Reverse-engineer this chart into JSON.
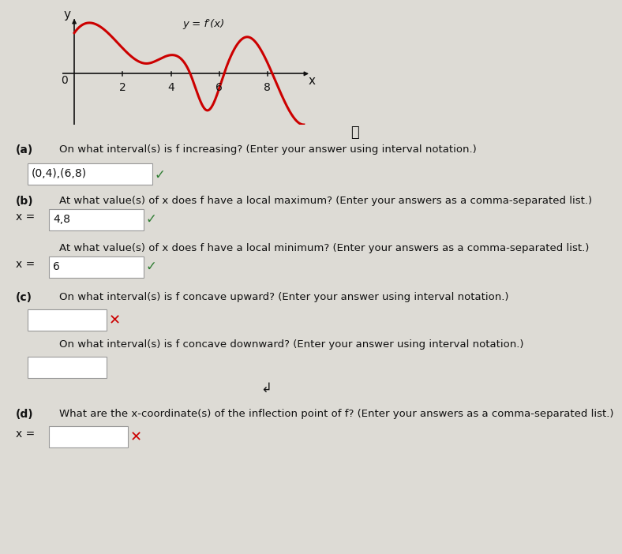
{
  "bg_color": "#dddbd5",
  "graph_bg": "#dddbd5",
  "curve_color": "#cc0000",
  "curve_linewidth": 2.2,
  "axis_color": "#111111",
  "x_ticks": [
    2,
    4,
    6,
    8
  ],
  "curve_label": "y = f′(x)",
  "title_circle": "ⓘ",
  "part_a_label": "(a)",
  "part_a_question": "On what interval(s) is f increasing? (Enter your answer using interval notation.)",
  "part_a_answer": "(0,4),(6,8)",
  "part_b_label": "(b)",
  "part_b_q1": "At what value(s) of x does f have a local maximum? (Enter your answers as a comma-separated list.)",
  "part_b_a1": "4,8",
  "part_b_q2": "At what value(s) of x does f have a local minimum? (Enter your answers as a comma-separated list.)",
  "part_b_a2": "6",
  "part_c_label": "(c)",
  "part_c_q1": "On what interval(s) is f concave upward? (Enter your answer using interval notation.)",
  "part_c_a1": "",
  "part_c_q2": "On what interval(s) is f concave downward? (Enter your answer using interval notation.)",
  "part_c_a2": "",
  "part_d_label": "(d)",
  "part_d_question": "What are the x-coordinate(s) of the inflection point of f? (Enter your answers as a comma-separated list.)",
  "part_d_answer": "",
  "check_color_correct": "#2e7d32",
  "check_color_wrong": "#cc0000",
  "box_color": "#ffffff",
  "box_border": "#999999",
  "text_color": "#111111",
  "font_size_question": 9.5,
  "font_size_answer": 10,
  "font_size_label": 10
}
